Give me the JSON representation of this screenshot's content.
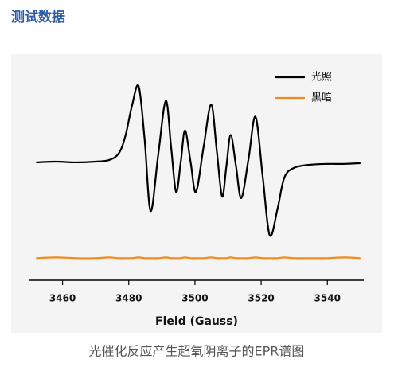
{
  "header": {
    "title": "测试数据"
  },
  "caption": "光催化反应产生超氧阴离子的EPR谱图",
  "chart_data": {
    "type": "line",
    "x_label": "Field (Gauss)",
    "x": [
      3452,
      3458,
      3464,
      3470,
      3474,
      3477,
      3479,
      3481,
      3483,
      3484.8,
      3486.6,
      3488.9,
      3491.2,
      3492.8,
      3494.3,
      3495.7,
      3497,
      3498.7,
      3500.3,
      3502.6,
      3504.9,
      3506.6,
      3508.2,
      3509.5,
      3510.8,
      3512.4,
      3514,
      3516.2,
      3518.3,
      3520.5,
      3522.6,
      3525,
      3527,
      3530,
      3535,
      3540,
      3545,
      3550
    ],
    "series": [
      {
        "name": "光照",
        "color": "#000000",
        "values": [
          0,
          0.01,
          0,
          0.01,
          0.03,
          0.12,
          0.35,
          0.75,
          1.0,
          0.3,
          -0.64,
          0.1,
          0.81,
          0.2,
          -0.39,
          0,
          0.42,
          0,
          -0.39,
          0.2,
          0.76,
          0.15,
          -0.45,
          -0.05,
          0.36,
          -0.05,
          -0.47,
          0.05,
          0.6,
          -0.2,
          -0.96,
          -0.6,
          -0.2,
          -0.07,
          -0.03,
          -0.02,
          -0.02,
          -0.01
        ]
      },
      {
        "name": "黑暗",
        "color": "#f28a1c",
        "values": [
          -1.26,
          -1.25,
          -1.26,
          -1.26,
          -1.25,
          -1.26,
          -1.26,
          -1.26,
          -1.25,
          -1.26,
          -1.26,
          -1.26,
          -1.25,
          -1.26,
          -1.26,
          -1.26,
          -1.25,
          -1.26,
          -1.26,
          -1.26,
          -1.25,
          -1.26,
          -1.26,
          -1.26,
          -1.25,
          -1.26,
          -1.26,
          -1.26,
          -1.25,
          -1.26,
          -1.26,
          -1.26,
          -1.25,
          -1.26,
          -1.26,
          -1.26,
          -1.25,
          -1.26
        ]
      }
    ],
    "xlim": [
      3450,
      3551
    ],
    "xticks": [
      3460,
      3480,
      3500,
      3520,
      3540
    ],
    "ylim": [
      -1.55,
      1.35
    ],
    "legend": "top-right"
  }
}
